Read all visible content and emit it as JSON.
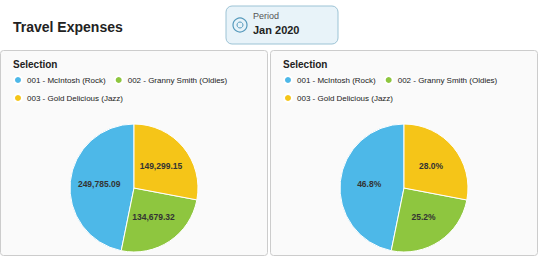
{
  "chart_data": [
    {
      "type": "pie",
      "title": "Travel Expenses",
      "annotations": [
        "Period",
        "Jan 2020"
      ],
      "subtitle": "Selection",
      "categories": [
        "001 - McIntosh (Rock)",
        "002 - Granny Smith (Oldies)",
        "003 - Gold Delicious (Jazz)"
      ],
      "values": [
        249785.09,
        134679.32,
        149299.15
      ],
      "value_labels": [
        "249,785.09",
        "134,679.32",
        "149,299.15"
      ],
      "colors": [
        "#4db8e8",
        "#8ec63f",
        "#f5c518"
      ],
      "data_labels": true,
      "legend": "upper left"
    },
    {
      "type": "pie",
      "subtitle": "Selection",
      "categories": [
        "001 - McIntosh (Rock)",
        "002 - Granny Smith (Oldies)",
        "003 - Gold Delicious (Jazz)"
      ],
      "values": [
        46.8,
        25.2,
        28.0
      ],
      "value_labels": [
        "46.8%",
        "25.2%",
        "28.0%"
      ],
      "colors": [
        "#4db8e8",
        "#8ec63f",
        "#f5c518"
      ],
      "data_labels": true,
      "legend": "upper left"
    }
  ]
}
